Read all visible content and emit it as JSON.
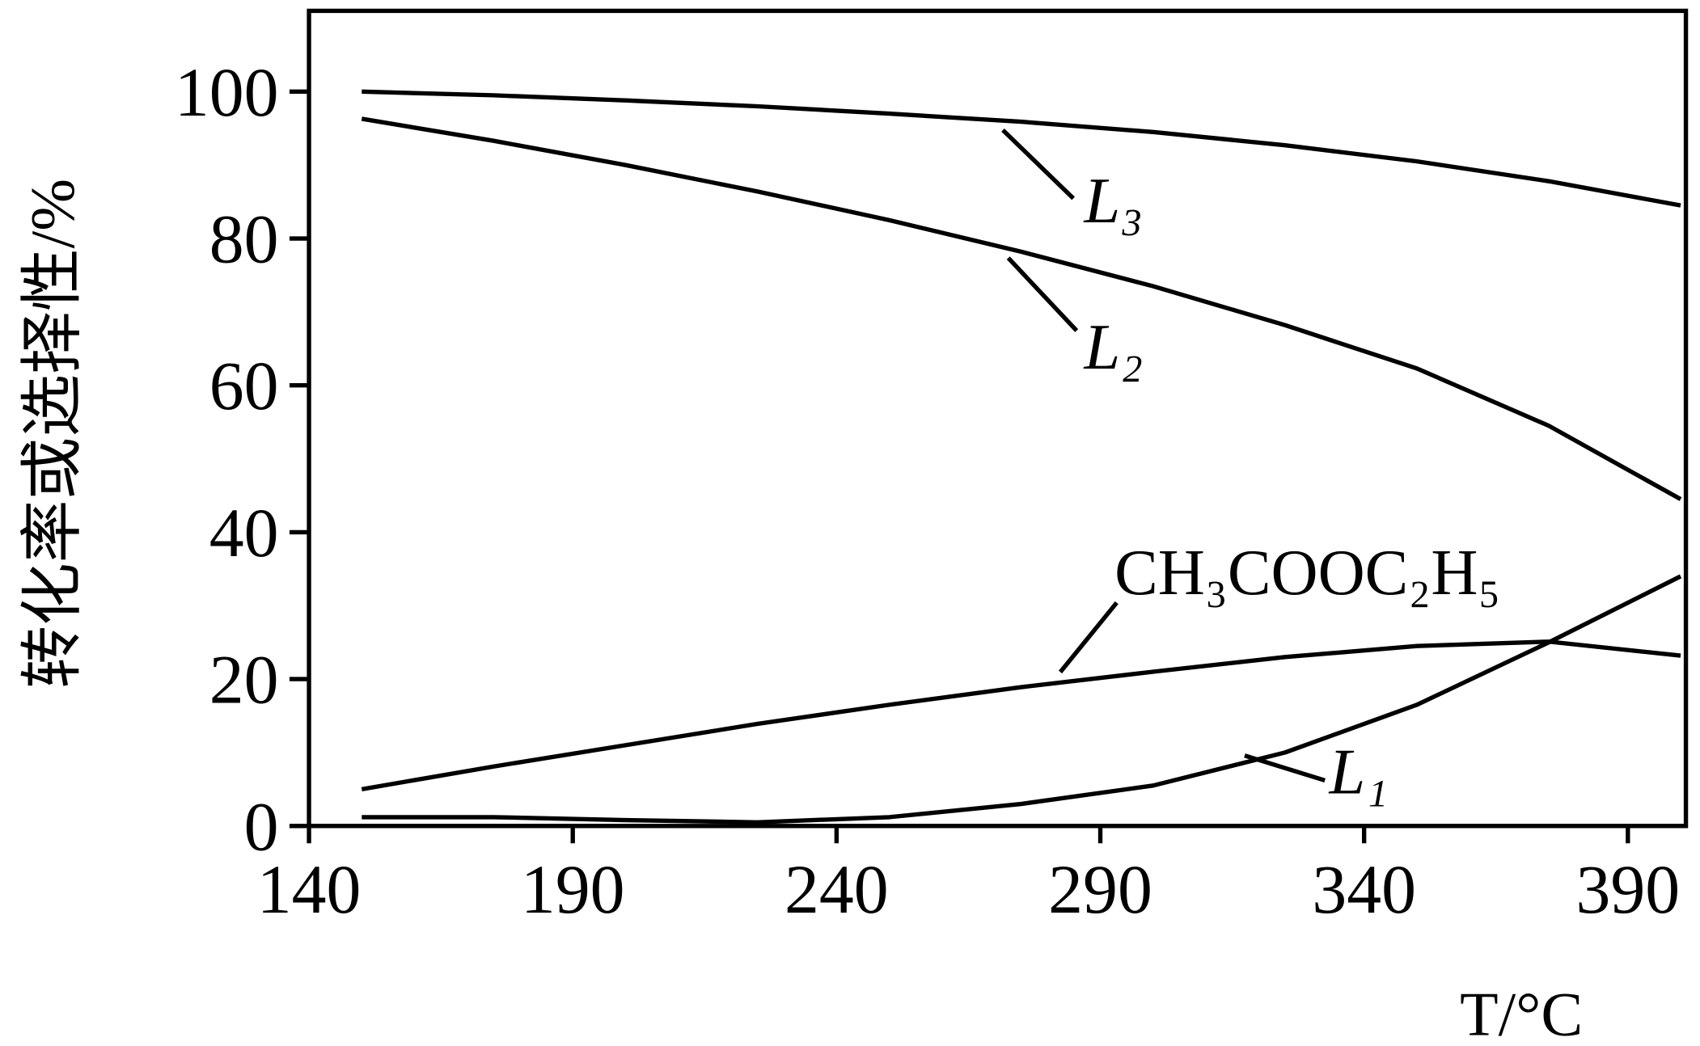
{
  "chart_data": {
    "type": "line",
    "x_label": "T/°C",
    "y_label": "转化率或选择性/%",
    "x": [
      150,
      175,
      200,
      225,
      250,
      275,
      300,
      325,
      350,
      375,
      400
    ],
    "series": [
      {
        "name": "L₃",
        "color": "#000000",
        "values": [
          100,
          99.5,
          98.8,
          98,
          97,
          95.9,
          94.5,
          92.7,
          90.5,
          87.8,
          84.5
        ]
      },
      {
        "name": "L₂",
        "color": "#000000",
        "values": [
          96.3,
          93.3,
          90,
          86.4,
          82.5,
          78.2,
          73.5,
          68.2,
          62.3,
          54.5,
          44.5
        ]
      },
      {
        "name": "CH₃COOC₂H₅",
        "color": "#000000",
        "values": [
          5,
          8.1,
          11,
          13.9,
          16.5,
          18.9,
          21,
          23,
          24.5,
          25.1,
          23.2
        ]
      },
      {
        "name": "L₁",
        "color": "#000000",
        "values": [
          1.2,
          1.2,
          0.8,
          0.5,
          1.2,
          3,
          5.5,
          10,
          16.5,
          25,
          34
        ]
      }
    ],
    "xlim": [
      140,
      401
    ],
    "ylim": [
      0,
      111
    ],
    "xticks": [
      140,
      190,
      240,
      290,
      340,
      390
    ],
    "yticks": [
      0,
      20,
      40,
      60,
      80,
      100
    ],
    "grid": false
  }
}
